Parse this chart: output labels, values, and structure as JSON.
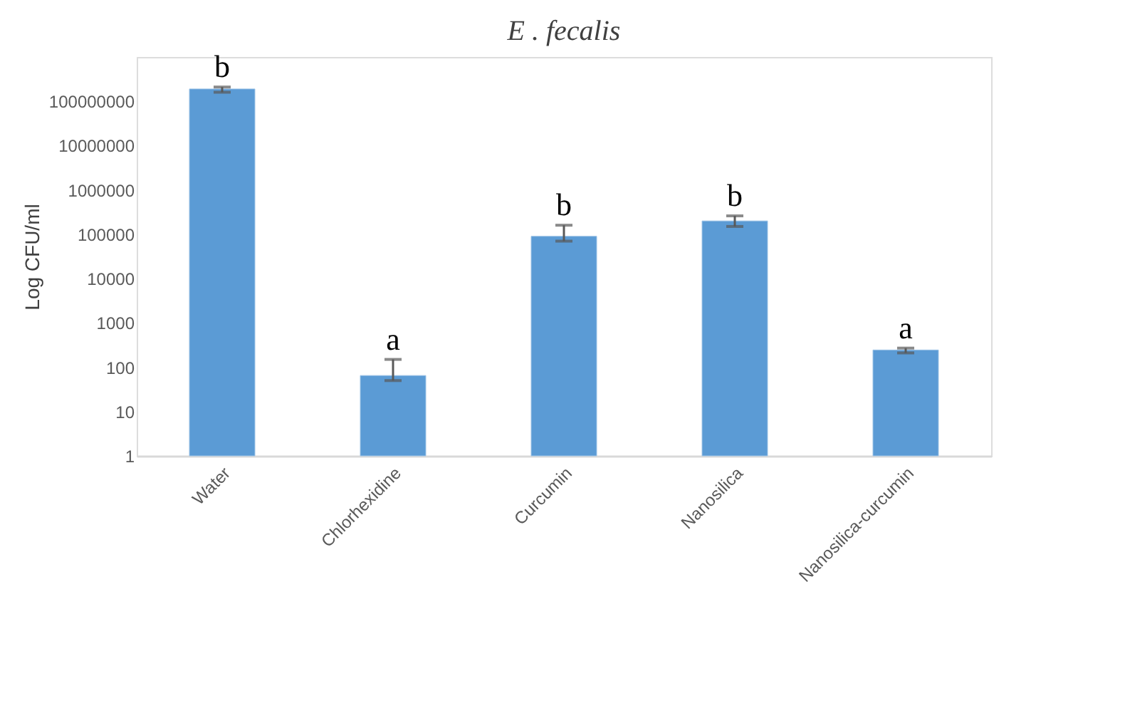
{
  "chart_data": {
    "type": "bar",
    "title": "E . fecalis",
    "ylabel": "Log CFU/ml",
    "categories": [
      "Water",
      "Chlorhexidine",
      "Curcumin",
      "Nanosilica",
      "Nanosilica-curcumin"
    ],
    "values": [
      190000000,
      65,
      90000,
      200000,
      245
    ],
    "errors": [
      [
        160000000,
        210000000
      ],
      [
        50,
        150
      ],
      [
        70000,
        160000
      ],
      [
        150000,
        260000
      ],
      [
        210,
        270
      ]
    ],
    "color": "#5b9bd5",
    "log": true,
    "ylim": [
      1,
      1000000000
    ],
    "yticks": [
      1,
      10,
      100,
      1000,
      10000,
      100000,
      1000000,
      10000000,
      100000000
    ],
    "grid": false,
    "annotations": [
      "b",
      "a",
      "b",
      "b",
      "a"
    ]
  }
}
